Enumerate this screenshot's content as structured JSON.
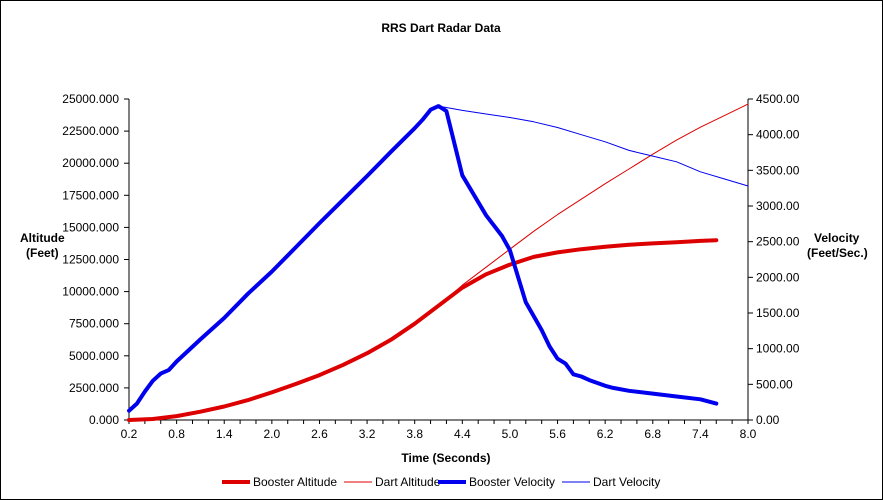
{
  "chart_data": {
    "type": "line",
    "title": "RRS Dart Radar Data",
    "xlabel": "Time (Seconds)",
    "ylabel_left": [
      "Altitude",
      "(Feet)"
    ],
    "ylabel_right": [
      "Velocity",
      "(Feet/Sec.)"
    ],
    "xlim": [
      0.2,
      8.0
    ],
    "ylim_left": [
      0,
      25000
    ],
    "ylim_right": [
      0,
      4500
    ],
    "x_ticks": [
      "0.2",
      "0.8",
      "1.4",
      "2.0",
      "2.6",
      "3.2",
      "3.8",
      "4.4",
      "5.0",
      "5.6",
      "6.2",
      "6.8",
      "7.4",
      "8.0"
    ],
    "y_left_ticks": [
      "0.000",
      "2500.000",
      "5000.000",
      "7500.000",
      "10000.000",
      "12500.000",
      "15000.000",
      "17500.000",
      "20000.000",
      "22500.000",
      "25000.000"
    ],
    "y_right_ticks": [
      "0.00",
      "500.00",
      "1000.00",
      "1500.00",
      "2000.00",
      "2500.00",
      "3000.00",
      "3500.00",
      "4000.00",
      "4500.00"
    ],
    "grid": false,
    "legend_position": "bottom",
    "series": [
      {
        "name": "Booster Altitude",
        "axis": "left",
        "color": "#dd0000",
        "width": 4,
        "x": [
          0.2,
          0.5,
          0.8,
          1.1,
          1.4,
          1.7,
          2.0,
          2.3,
          2.6,
          2.9,
          3.2,
          3.5,
          3.8,
          4.1,
          4.4,
          4.7,
          5.0,
          5.3,
          5.6,
          5.9,
          6.2,
          6.5,
          6.8,
          7.1,
          7.4,
          7.6
        ],
        "y": [
          0,
          80,
          300,
          650,
          1050,
          1550,
          2150,
          2800,
          3500,
          4300,
          5200,
          6250,
          7500,
          8900,
          10300,
          11350,
          12100,
          12700,
          13050,
          13300,
          13500,
          13650,
          13750,
          13850,
          13950,
          14000
        ]
      },
      {
        "name": "Dart Altitude",
        "axis": "left",
        "color": "#dd0000",
        "width": 1,
        "x": [
          4.1,
          4.4,
          4.7,
          5.0,
          5.3,
          5.6,
          5.9,
          6.2,
          6.5,
          6.8,
          7.1,
          7.4,
          7.7,
          8.0
        ],
        "y": [
          8900,
          10500,
          11900,
          13300,
          14700,
          16000,
          17200,
          18400,
          19550,
          20700,
          21800,
          22800,
          23700,
          24600
        ]
      },
      {
        "name": "Booster Velocity",
        "axis": "right",
        "color": "#0000ee",
        "width": 4,
        "x": [
          0.2,
          0.3,
          0.4,
          0.5,
          0.6,
          0.7,
          0.8,
          1.1,
          1.4,
          1.7,
          2.0,
          2.3,
          2.6,
          2.9,
          3.2,
          3.5,
          3.8,
          3.9,
          4.0,
          4.1,
          4.2,
          4.4,
          4.7,
          4.9,
          5.0,
          5.2,
          5.4,
          5.5,
          5.6,
          5.7,
          5.8,
          5.9,
          6.0,
          6.2,
          6.3,
          6.5,
          6.8,
          7.1,
          7.4,
          7.6
        ],
        "y": [
          130,
          230,
          400,
          550,
          650,
          700,
          820,
          1130,
          1430,
          1770,
          2080,
          2420,
          2760,
          3090,
          3420,
          3760,
          4090,
          4210,
          4350,
          4400,
          4330,
          3430,
          2870,
          2580,
          2380,
          1650,
          1260,
          1030,
          860,
          790,
          640,
          610,
          560,
          480,
          450,
          410,
          370,
          330,
          290,
          230
        ]
      },
      {
        "name": "Dart Velocity",
        "axis": "right",
        "color": "#0000ee",
        "width": 1,
        "x": [
          4.1,
          4.4,
          4.7,
          5.0,
          5.3,
          5.6,
          5.9,
          6.2,
          6.5,
          6.8,
          7.1,
          7.4,
          7.7,
          8.0
        ],
        "y": [
          4400,
          4340,
          4290,
          4240,
          4180,
          4100,
          4000,
          3900,
          3780,
          3700,
          3620,
          3480,
          3380,
          3280
        ]
      }
    ]
  }
}
